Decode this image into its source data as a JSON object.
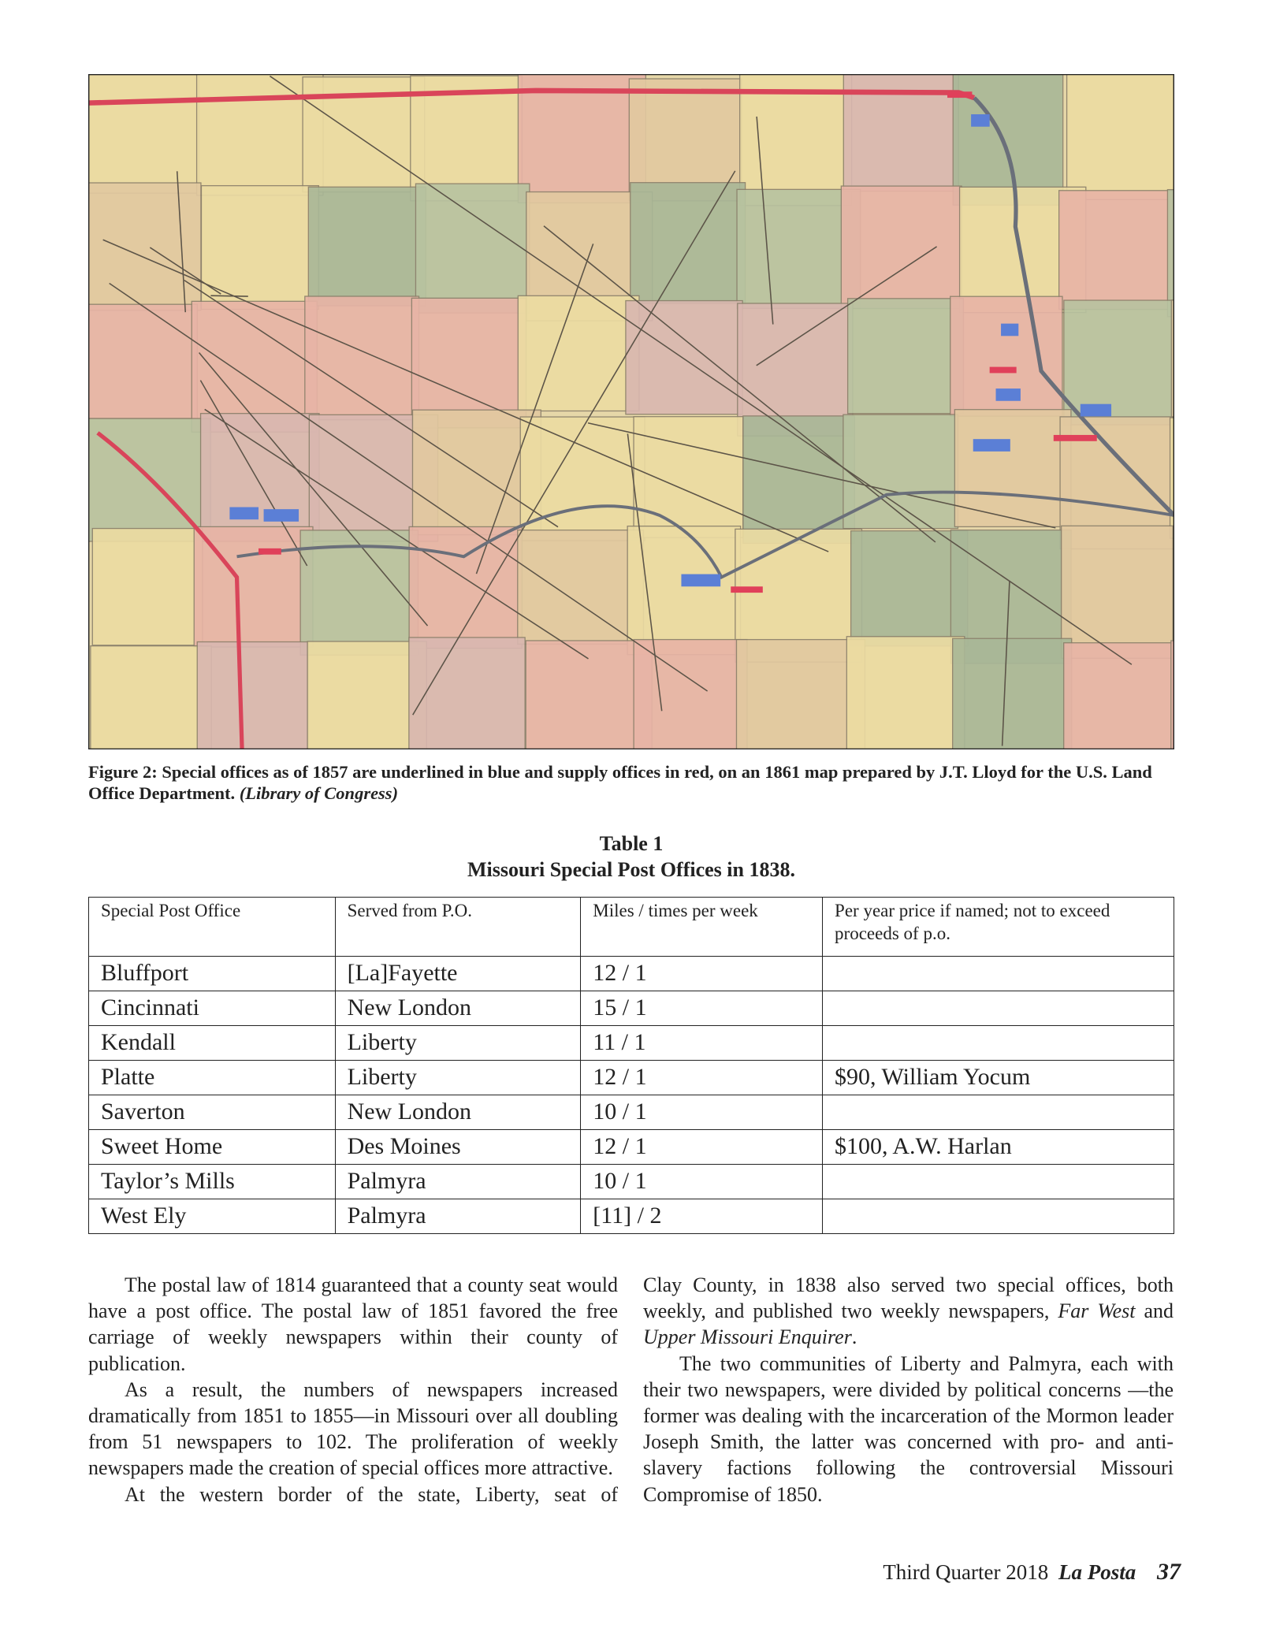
{
  "figure": {
    "caption": {
      "runs": [
        {
          "text": "Figure 2: Special offices as of 1857 are underlined in blue and supply offices in red, on an 1861 map prepared by J.T. Lloyd for the U.S. Land Office Department. ",
          "italic": false
        },
        {
          "text": "(Library of Congress)",
          "italic": true
        }
      ]
    }
  },
  "table": {
    "title": "Table 1",
    "subtitle": "Missouri Special Post Offices in 1838.",
    "header": [
      "Special Post Office",
      "Served from P.O.",
      "Miles / times per week",
      "Per year price if named; not to exceed proceeds of p.o."
    ],
    "rows": [
      [
        "Bluffport",
        "[La]Fayette",
        "12 / 1",
        null
      ],
      [
        "Cincinnati",
        "New London",
        "15 / 1",
        null
      ],
      [
        "Kendall",
        "Liberty",
        "11 / 1",
        null
      ],
      [
        "Platte",
        "Liberty",
        "12 / 1",
        "$90, William Yocum"
      ],
      [
        "Saverton",
        "New London",
        "10 / 1",
        null
      ],
      [
        "Sweet Home",
        "Des Moines",
        "12 / 1",
        "$100, A.W. Harlan"
      ],
      [
        "Taylor’s Mills",
        "Palmyra",
        "10 / 1",
        null
      ],
      [
        "West Ely",
        "Palmyra",
        "[11] / 2",
        null
      ]
    ]
  },
  "body": {
    "columns": [
      {
        "paragraphs": [
          {
            "runs": [
              {
                "text": "The postal law of 1814 guaranteed that a county seat would have a post office. The postal law of 1851 favored the free carriage of weekly newspapers within their county of publication.",
                "italic": false
              }
            ]
          },
          {
            "runs": [
              {
                "text": "As a result, the numbers of newspapers increased dramatically from 1851 to 1855—in Missouri over all doubling from 51 newspapers to 102. The proliferation of weekly newspapers made the creation of special offices more attractive.",
                "italic": false
              }
            ]
          },
          {
            "runs": [
              {
                "text": "At the western border of the state, Liberty, seat of",
                "italic": false
              }
            ]
          }
        ]
      },
      {
        "paragraphs": [
          {
            "runs": [
              {
                "text": "Clay County, in 1838 also served two special offices, both weekly, and published two weekly newspapers, ",
                "italic": false
              },
              {
                "text": "Far West",
                "italic": true
              },
              {
                "text": " and ",
                "italic": false
              },
              {
                "text": "Upper Missouri Enquirer",
                "italic": true
              },
              {
                "text": ".",
                "italic": false
              }
            ]
          },
          {
            "runs": [
              {
                "text": "The two communities of Liberty and Palmyra, each with their two newspapers, were divided by political concerns —the former was dealing with the incarceration of the Mormon leader Joseph Smith, the latter was concerned with pro- and anti-slavery factions following the controversial Missouri Compromise of 1850.",
                "italic": false
              }
            ]
          }
        ]
      }
    ]
  },
  "footer": {
    "issue": "Third Quarter 2018",
    "magazine": "La Posta",
    "page": "37"
  }
}
